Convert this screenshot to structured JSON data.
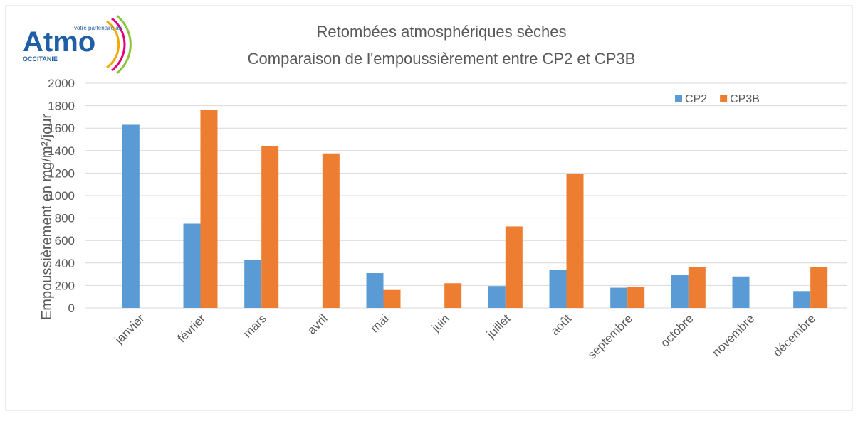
{
  "logo": {
    "name": "Atmo",
    "tagline": "votre partenaire air",
    "region": "OCCITANIE"
  },
  "chart_data": {
    "type": "bar",
    "title": [
      "Retombées atmosphériques sèches",
      "Comparaison de l'empoussièrement entre CP2 et CP3B"
    ],
    "y_label": "Empoussièrement en mg/m²/jour",
    "categories": [
      "janvier",
      "février",
      "mars",
      "avril",
      "mai",
      "juin",
      "juillet",
      "août",
      "septembre",
      "octobre",
      "novembre",
      "décembre"
    ],
    "series": [
      {
        "name": "CP2",
        "color": "#5b9bd5",
        "values": [
          1630,
          750,
          430,
          null,
          310,
          null,
          195,
          340,
          180,
          295,
          280,
          150
        ]
      },
      {
        "name": "CP3B",
        "color": "#ed7d31",
        "values": [
          null,
          1760,
          1440,
          1375,
          160,
          220,
          725,
          1195,
          190,
          365,
          null,
          365
        ]
      }
    ],
    "ylim": [
      0,
      2000
    ],
    "yticks": [
      0,
      200,
      400,
      600,
      800,
      1000,
      1200,
      1400,
      1600,
      1800,
      2000
    ],
    "grid": true,
    "legend": "top-right"
  }
}
